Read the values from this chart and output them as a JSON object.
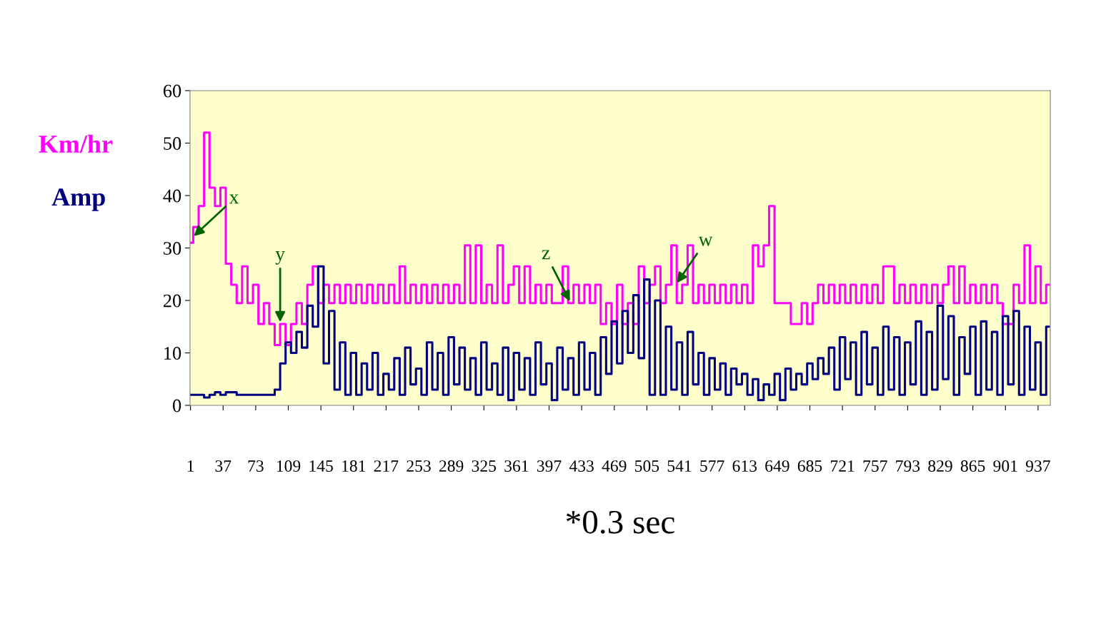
{
  "chart_data": {
    "type": "line",
    "xlabel": "*0.3 sec",
    "x": [
      1,
      7,
      13,
      19,
      25,
      31,
      37,
      43,
      49,
      55,
      61,
      67,
      73,
      79,
      85,
      91,
      97,
      103,
      109,
      115,
      121,
      127,
      133,
      139,
      145,
      151,
      157,
      163,
      169,
      175,
      181,
      187,
      193,
      199,
      205,
      211,
      217,
      223,
      229,
      235,
      241,
      247,
      253,
      259,
      265,
      271,
      277,
      283,
      289,
      295,
      301,
      307,
      313,
      319,
      325,
      331,
      337,
      343,
      349,
      355,
      361,
      367,
      373,
      379,
      385,
      391,
      397,
      403,
      409,
      415,
      421,
      427,
      433,
      439,
      445,
      451,
      457,
      463,
      469,
      475,
      481,
      487,
      493,
      499,
      505,
      511,
      517,
      523,
      529,
      535,
      541,
      547,
      553,
      559,
      565,
      571,
      577,
      583,
      589,
      595,
      601,
      607,
      613,
      619,
      625,
      631,
      637,
      643,
      649,
      655,
      661,
      667,
      673,
      679,
      685,
      691,
      697,
      703,
      709,
      715,
      721,
      727,
      733,
      739,
      745,
      751,
      757,
      763,
      769,
      775,
      781,
      787,
      793,
      799,
      805,
      811,
      817,
      823,
      829,
      835,
      841,
      847,
      853,
      859,
      865,
      871,
      877,
      883,
      889,
      895,
      901,
      907,
      913,
      919,
      925,
      931,
      937,
      943,
      949
    ],
    "series": [
      {
        "name": "Km/hr",
        "color": "#ff00ff",
        "values": [
          31,
          34,
          38,
          52,
          41.5,
          38,
          41.5,
          27,
          23,
          19.5,
          26.5,
          19.5,
          23,
          15.5,
          19.5,
          15.5,
          11.5,
          15.5,
          11.5,
          15.5,
          19.5,
          15.5,
          23,
          26.5,
          19.5,
          23,
          19.5,
          23,
          19.5,
          23,
          19.5,
          23,
          19.5,
          23,
          19.5,
          23,
          19.5,
          23,
          19.5,
          26.5,
          19.5,
          23,
          19.5,
          23,
          19.5,
          23,
          19.5,
          23,
          19.5,
          23,
          19.5,
          30.5,
          19.5,
          30.5,
          19.5,
          23,
          19.5,
          30.5,
          19.5,
          23,
          26.5,
          19.5,
          26.5,
          19.5,
          23,
          19.5,
          23,
          19.5,
          19.5,
          26.5,
          19.5,
          23,
          19.5,
          23,
          19.5,
          23,
          15.5,
          19.5,
          15.5,
          23,
          15.5,
          19.5,
          15.5,
          26.5,
          19.5,
          23,
          26.5,
          19.5,
          23,
          30.5,
          19.5,
          23,
          30.5,
          19.5,
          23,
          19.5,
          23,
          19.5,
          23,
          19.5,
          23,
          19.5,
          23,
          19.5,
          30.5,
          26.5,
          30.5,
          38,
          19.5,
          19.5,
          19.5,
          15.5,
          15.5,
          19.5,
          15.5,
          19.5,
          23,
          19.5,
          23,
          19.5,
          23,
          19.5,
          23,
          19.5,
          23,
          19.5,
          23,
          19.5,
          26.5,
          26.5,
          19.5,
          23,
          19.5,
          23,
          19.5,
          23,
          19.5,
          23,
          19.5,
          23,
          26.5,
          19.5,
          26.5,
          19.5,
          23,
          19.5,
          23,
          19.5,
          23,
          19.5,
          15.5,
          15.5,
          23,
          19.5,
          30.5,
          19.5,
          26.5,
          19.5,
          23
        ]
      },
      {
        "name": "Amp",
        "color": "#000080",
        "values": [
          2,
          2,
          2,
          1.5,
          2,
          2.5,
          2,
          2.5,
          2.5,
          2,
          2,
          2,
          2,
          2,
          2,
          2,
          3,
          8,
          12,
          10,
          14,
          11,
          19,
          15,
          26.5,
          8,
          18,
          3,
          12,
          2,
          10,
          2,
          8,
          3,
          10,
          2,
          6,
          3,
          9,
          2,
          11,
          4,
          7,
          2,
          12,
          3,
          10,
          2,
          13,
          4,
          11,
          3,
          9,
          2,
          12,
          3,
          8,
          2,
          11,
          1,
          10,
          3,
          9,
          2,
          12,
          4,
          8,
          1,
          11,
          3,
          9,
          2,
          12,
          3,
          10,
          2,
          13,
          6,
          16,
          8,
          18,
          10,
          21,
          9,
          24,
          2,
          20,
          2,
          15,
          3,
          12,
          2,
          14,
          4,
          10,
          2,
          9,
          3,
          8,
          2,
          7,
          4,
          6,
          2,
          5,
          1,
          4,
          2,
          6,
          1,
          7,
          3,
          6,
          4,
          8,
          5,
          9,
          6,
          11,
          3,
          13,
          5,
          12,
          2,
          14,
          4,
          11,
          2,
          15,
          3,
          13,
          2,
          12,
          4,
          16,
          2,
          14,
          3,
          19,
          5,
          17,
          2,
          13,
          6,
          15,
          2,
          16,
          3,
          14,
          2,
          17,
          4,
          18,
          2,
          15,
          3,
          12,
          2,
          15
        ]
      }
    ],
    "xlim": [
      0.5,
      950.5
    ],
    "xticks": [
      1,
      37,
      73,
      109,
      145,
      181,
      217,
      253,
      289,
      325,
      361,
      397,
      433,
      469,
      505,
      541,
      577,
      613,
      649,
      685,
      721,
      757,
      793,
      829,
      865,
      901,
      937
    ],
    "ylim": [
      0,
      60
    ],
    "yticks": [
      0,
      10,
      20,
      30,
      40,
      50,
      60
    ],
    "annotations": [
      {
        "text": "x",
        "x": 3,
        "y": 32
      },
      {
        "text": "y",
        "x": 100,
        "y": 15.5
      },
      {
        "text": "z",
        "x": 421,
        "y": 19.5
      },
      {
        "text": "w",
        "x": 537,
        "y": 23
      }
    ],
    "grid": false,
    "legend": false,
    "marker": "none",
    "line_style": "solid"
  }
}
